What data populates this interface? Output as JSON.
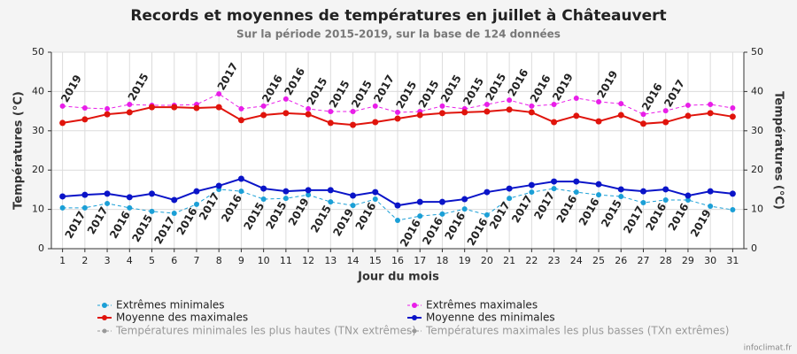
{
  "chart_data": {
    "type": "line",
    "title": "Records et moyennes de températures en juillet à Châteauvert",
    "subtitle": "Sur la période 2015-2019, sur la base de 124 données",
    "x_label": "Jour du mois",
    "y_label": "Températures (°C)",
    "y2_label": "Températures (°C)",
    "credit": "infoclimat.fr",
    "x": [
      1,
      2,
      3,
      4,
      5,
      6,
      7,
      8,
      9,
      10,
      11,
      12,
      13,
      14,
      15,
      16,
      17,
      18,
      19,
      20,
      21,
      22,
      23,
      24,
      25,
      26,
      27,
      28,
      29,
      30,
      31
    ],
    "xlim": [
      0.5,
      31.5
    ],
    "xticks": [
      1,
      2,
      3,
      4,
      5,
      6,
      7,
      8,
      9,
      10,
      11,
      12,
      13,
      14,
      15,
      16,
      17,
      18,
      19,
      20,
      21,
      22,
      23,
      24,
      25,
      26,
      27,
      28,
      29,
      30,
      31
    ],
    "ylim": [
      0,
      50
    ],
    "yticks": [
      0,
      10,
      20,
      30,
      40,
      50
    ],
    "y2lim": [
      0,
      50
    ],
    "y2ticks": [
      0,
      10,
      20,
      30,
      40,
      50
    ],
    "grid": true,
    "series": [
      {
        "name": "Extrêmes minimales",
        "color": "#1b9fd6",
        "style": "dashed",
        "values": [
          10.4,
          10.4,
          11.5,
          10.4,
          9.5,
          9.0,
          11.3,
          15.1,
          14.6,
          12.6,
          12.8,
          13.7,
          11.9,
          11.0,
          12.6,
          7.2,
          8.3,
          8.8,
          10.1,
          8.6,
          12.8,
          14.4,
          15.3,
          14.4,
          13.7,
          13.3,
          11.7,
          12.4,
          12.4,
          10.8,
          9.9
        ],
        "point_labels": [
          null,
          "2017",
          "2017",
          "2016",
          "2015",
          "2017",
          "2016",
          "2017",
          "2016",
          "2015",
          "2015",
          "2019",
          "2015",
          "2019",
          "2016",
          null,
          "2016",
          "2016",
          "2016",
          "2016",
          "2017",
          "2017",
          "2017",
          "2016",
          "2016",
          "2015",
          "2017",
          "2016",
          "2016",
          "2019",
          null
        ],
        "label_side": "below"
      },
      {
        "name": "Extrêmes maximales",
        "color": "#e81ee8",
        "style": "dashed",
        "values": [
          36.3,
          35.8,
          35.6,
          36.7,
          36.5,
          36.5,
          36.7,
          39.4,
          35.6,
          36.3,
          38.1,
          35.6,
          34.9,
          34.9,
          36.3,
          34.7,
          34.9,
          36.3,
          35.6,
          36.7,
          37.8,
          36.3,
          36.7,
          38.3,
          37.4,
          36.9,
          34.2,
          35.1,
          36.5,
          36.7,
          35.8
        ],
        "point_labels": [
          "2019",
          null,
          null,
          "2015",
          null,
          null,
          null,
          "2017",
          null,
          "2016",
          "2016",
          "2015",
          "2015",
          "2015",
          "2017",
          "2015",
          "2015",
          "2015",
          "2015",
          "2015",
          "2016",
          "2016",
          "2019",
          null,
          "2019",
          null,
          "2016",
          "2017",
          null,
          null,
          null
        ],
        "label_side": "above"
      },
      {
        "name": "Moyenne des maximales",
        "color": "#e0140c",
        "style": "solid",
        "values": [
          32.0,
          32.9,
          34.2,
          34.7,
          36.0,
          36.0,
          35.8,
          36.0,
          32.7,
          34.0,
          34.5,
          34.2,
          32.0,
          31.5,
          32.2,
          33.1,
          34.0,
          34.5,
          34.7,
          34.9,
          35.4,
          34.7,
          32.2,
          33.8,
          32.4,
          34.0,
          31.8,
          32.2,
          33.8,
          34.5,
          33.6
        ]
      },
      {
        "name": "Moyenne des minimales",
        "color": "#0a14c8",
        "style": "solid",
        "values": [
          13.3,
          13.7,
          14.0,
          13.1,
          14.0,
          12.4,
          14.6,
          16.0,
          17.8,
          15.3,
          14.6,
          14.9,
          14.9,
          13.5,
          14.4,
          11.0,
          11.9,
          11.9,
          12.6,
          14.4,
          15.3,
          16.2,
          17.1,
          17.1,
          16.4,
          15.1,
          14.6,
          15.1,
          13.5,
          14.6,
          14.0
        ]
      }
    ],
    "inactive_series": [
      {
        "name": "Températures minimales les plus hautes (TNx extrêmes)",
        "color": "#999999"
      },
      {
        "name": "Températures maximales les plus basses (TXn extrêmes)",
        "color": "#999999"
      }
    ]
  }
}
